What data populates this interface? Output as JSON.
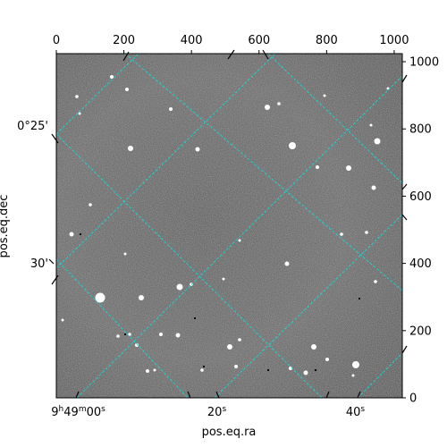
{
  "chart_data": {
    "type": "image",
    "pixel_axes": {
      "x_range": [
        0,
        1024
      ],
      "y_range": [
        0,
        1024
      ],
      "top_ticks": [
        "0",
        "200",
        "400",
        "600",
        "800",
        "1000"
      ],
      "top_tick_values": [
        0,
        200,
        400,
        600,
        800,
        1000
      ],
      "right_ticks": [
        "0",
        "200",
        "400",
        "600",
        "800",
        "1000"
      ],
      "right_tick_values": [
        0,
        200,
        400,
        600,
        800,
        1000
      ]
    },
    "world_axes": {
      "xlabel": "pos.eq.ra",
      "ylabel": "pos.eq.dec",
      "ra_ticks": [
        {
          "label": "9h49m00s",
          "x": 65
        },
        {
          "label": "20s",
          "x": 475
        },
        {
          "label": "40s",
          "x": 885
        }
      ],
      "dec_ticks": [
        {
          "label": "0°25'",
          "y": 810
        },
        {
          "label": "30'",
          "y": 400
        }
      ]
    },
    "grid": true,
    "grid_color": "#1fd2d2",
    "image_colormap": "gray"
  }
}
